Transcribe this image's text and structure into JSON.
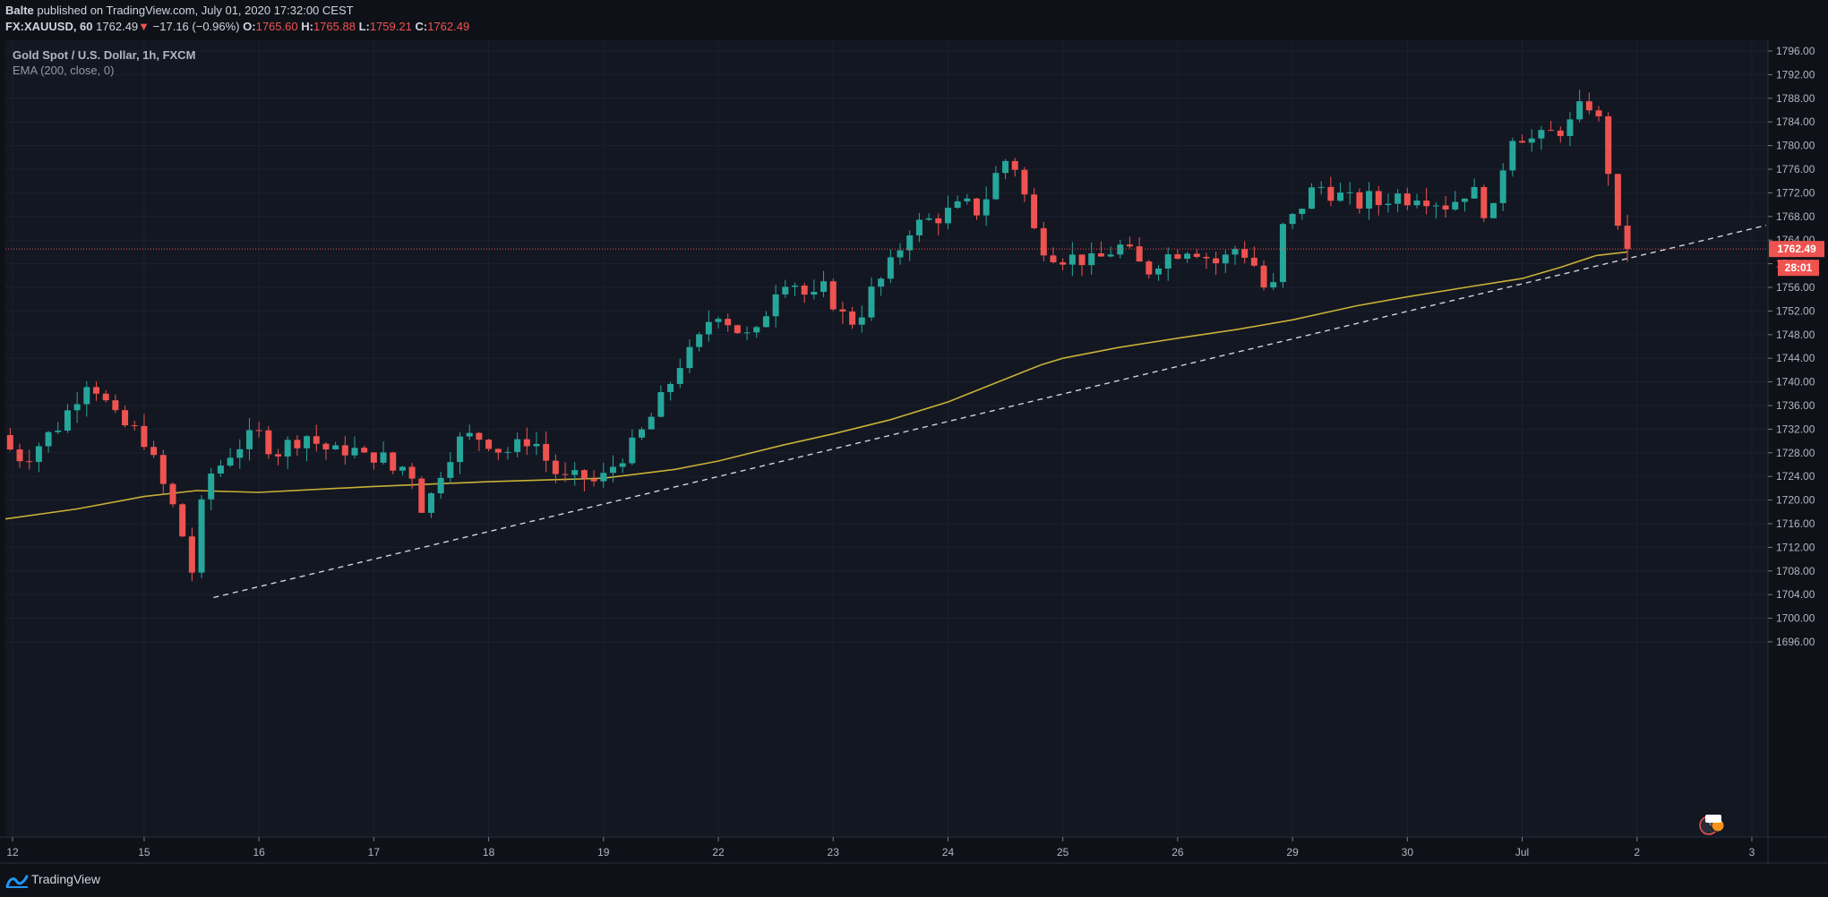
{
  "header": {
    "author": "Balte",
    "published_text": "published on TradingView.com, July 01, 2020 17:32:00 CEST",
    "symbol": "FX:XAUUSD, 60",
    "last": "1762.49",
    "arrow": "▼",
    "change": "−17.16 (−0.96%)",
    "o_label": "O:",
    "o_value": "1765.60",
    "h_label": "H:",
    "h_value": "1765.88",
    "l_label": "L:",
    "l_value": "1759.21",
    "c_label": "C:",
    "c_value": "1762.49"
  },
  "legend": {
    "title": "Gold Spot / U.S. Dollar, 1h, FXCM",
    "indicator": "EMA (200, close, 0)"
  },
  "footer": {
    "brand": "TradingView"
  },
  "price_badge": {
    "price": "1762.49",
    "countdown": "28:01"
  },
  "colors": {
    "background": "#0f1118",
    "up": "#26a69a",
    "down": "#ef5350",
    "ema": "#c9b037",
    "trendline": "#d1d4dc",
    "grid": "#1c2030"
  },
  "chart_data": {
    "type": "candlestick",
    "series": [
      {
        "name": "XAUUSD 1h",
        "kind": "ohlc"
      },
      {
        "name": "EMA (200, close, 0)",
        "kind": "line"
      }
    ],
    "y_ticks": [
      1696,
      1700,
      1704,
      1708,
      1712,
      1716,
      1720,
      1724,
      1728,
      1732,
      1736,
      1740,
      1744,
      1748,
      1752,
      1756,
      1760,
      1764,
      1768,
      1772,
      1776,
      1780,
      1784,
      1788,
      1792,
      1796
    ],
    "ylim": [
      1695.5,
      1798.5
    ],
    "x_tick_labels": [
      "12",
      "15",
      "16",
      "17",
      "18",
      "19",
      "22",
      "23",
      "24",
      "25",
      "26",
      "29",
      "30",
      "Jul",
      "2",
      "3"
    ],
    "x_ticks_index": [
      6,
      116,
      212,
      308,
      404,
      500,
      596,
      692,
      788,
      884,
      980,
      1076,
      1172,
      1268,
      1364,
      1460
    ],
    "xlim": [
      0,
      1472
    ],
    "anchors": [
      [
        0,
        1731
      ],
      [
        10,
        1728
      ],
      [
        20,
        1727
      ],
      [
        35,
        1730
      ],
      [
        50,
        1733
      ],
      [
        62,
        1737
      ],
      [
        74,
        1741
      ],
      [
        86,
        1737
      ],
      [
        98,
        1733
      ],
      [
        110,
        1732
      ],
      [
        122,
        1730
      ],
      [
        132,
        1724
      ],
      [
        142,
        1720
      ],
      [
        152,
        1714
      ],
      [
        160,
        1708
      ],
      [
        166,
        1716
      ],
      [
        172,
        1724
      ],
      [
        180,
        1725
      ],
      [
        192,
        1728
      ],
      [
        204,
        1730
      ],
      [
        216,
        1731
      ],
      [
        230,
        1728
      ],
      [
        244,
        1730
      ],
      [
        256,
        1731
      ],
      [
        268,
        1729
      ],
      [
        280,
        1728
      ],
      [
        292,
        1729
      ],
      [
        304,
        1727
      ],
      [
        316,
        1728
      ],
      [
        328,
        1725
      ],
      [
        340,
        1726
      ],
      [
        348,
        1723
      ],
      [
        354,
        1717
      ],
      [
        362,
        1722
      ],
      [
        372,
        1727
      ],
      [
        384,
        1730
      ],
      [
        396,
        1731
      ],
      [
        408,
        1730
      ],
      [
        420,
        1728
      ],
      [
        432,
        1729
      ],
      [
        444,
        1731
      ],
      [
        452,
        1728
      ],
      [
        462,
        1725
      ],
      [
        474,
        1723
      ],
      [
        486,
        1724
      ],
      [
        496,
        1723
      ],
      [
        506,
        1724
      ],
      [
        516,
        1727
      ],
      [
        528,
        1729
      ],
      [
        538,
        1732
      ],
      [
        550,
        1736
      ],
      [
        560,
        1740
      ],
      [
        570,
        1744
      ],
      [
        580,
        1745
      ],
      [
        590,
        1750
      ],
      [
        600,
        1752
      ],
      [
        610,
        1750
      ],
      [
        620,
        1748
      ],
      [
        630,
        1747
      ],
      [
        640,
        1752
      ],
      [
        650,
        1757
      ],
      [
        660,
        1758
      ],
      [
        670,
        1755
      ],
      [
        680,
        1754
      ],
      [
        690,
        1756
      ],
      [
        700,
        1752
      ],
      [
        710,
        1750
      ],
      [
        720,
        1752
      ],
      [
        730,
        1756
      ],
      [
        740,
        1758
      ],
      [
        750,
        1762
      ],
      [
        760,
        1766
      ],
      [
        772,
        1767
      ],
      [
        784,
        1768
      ],
      [
        796,
        1769
      ],
      [
        806,
        1770
      ],
      [
        816,
        1769
      ],
      [
        826,
        1772
      ],
      [
        834,
        1776
      ],
      [
        842,
        1778
      ],
      [
        850,
        1776
      ],
      [
        858,
        1770
      ],
      [
        866,
        1764
      ],
      [
        878,
        1762
      ],
      [
        890,
        1761
      ],
      [
        902,
        1761
      ],
      [
        914,
        1760
      ],
      [
        926,
        1762
      ],
      [
        938,
        1763
      ],
      [
        950,
        1760
      ],
      [
        960,
        1759
      ],
      [
        970,
        1761
      ],
      [
        982,
        1762
      ],
      [
        994,
        1763
      ],
      [
        1004,
        1762
      ],
      [
        1014,
        1760
      ],
      [
        1024,
        1761
      ],
      [
        1034,
        1763
      ],
      [
        1044,
        1761
      ],
      [
        1054,
        1758
      ],
      [
        1060,
        1752
      ],
      [
        1066,
        1758
      ],
      [
        1072,
        1766
      ],
      [
        1082,
        1768
      ],
      [
        1094,
        1772
      ],
      [
        1104,
        1773
      ],
      [
        1114,
        1772
      ],
      [
        1124,
        1771
      ],
      [
        1134,
        1770
      ],
      [
        1144,
        1771
      ],
      [
        1154,
        1770
      ],
      [
        1164,
        1772
      ],
      [
        1174,
        1771
      ],
      [
        1184,
        1772
      ],
      [
        1196,
        1771
      ],
      [
        1208,
        1770
      ],
      [
        1218,
        1771
      ],
      [
        1228,
        1773
      ],
      [
        1238,
        1770
      ],
      [
        1246,
        1767
      ],
      [
        1252,
        1772
      ],
      [
        1258,
        1779
      ],
      [
        1266,
        1783
      ],
      [
        1276,
        1781
      ],
      [
        1286,
        1781
      ],
      [
        1296,
        1782
      ],
      [
        1306,
        1783
      ],
      [
        1316,
        1784
      ],
      [
        1322,
        1787
      ],
      [
        1330,
        1787
      ],
      [
        1336,
        1784
      ],
      [
        1342,
        1778
      ],
      [
        1348,
        1772
      ],
      [
        1352,
        1765
      ],
      [
        1356,
        1762.49
      ]
    ],
    "ema_points": [
      [
        0,
        1716.8
      ],
      [
        60,
        1718.5
      ],
      [
        116,
        1720.6
      ],
      [
        160,
        1721.6
      ],
      [
        212,
        1721.3
      ],
      [
        308,
        1722.3
      ],
      [
        404,
        1723.1
      ],
      [
        500,
        1723.7
      ],
      [
        560,
        1725.2
      ],
      [
        596,
        1726.6
      ],
      [
        650,
        1729.3
      ],
      [
        692,
        1731.2
      ],
      [
        740,
        1733.6
      ],
      [
        788,
        1736.6
      ],
      [
        830,
        1740.0
      ],
      [
        866,
        1742.9
      ],
      [
        884,
        1744.0
      ],
      [
        930,
        1745.8
      ],
      [
        980,
        1747.4
      ],
      [
        1030,
        1748.9
      ],
      [
        1076,
        1750.5
      ],
      [
        1130,
        1752.9
      ],
      [
        1172,
        1754.4
      ],
      [
        1230,
        1756.3
      ],
      [
        1268,
        1757.5
      ],
      [
        1300,
        1759.4
      ],
      [
        1330,
        1761.4
      ],
      [
        1356,
        1762.0
      ]
    ],
    "trendline": {
      "x1": 174,
      "y1": 1703.5,
      "x2": 1472,
      "y2": 1766.5,
      "style": "dashed"
    },
    "last_price_line": 1762.49
  }
}
